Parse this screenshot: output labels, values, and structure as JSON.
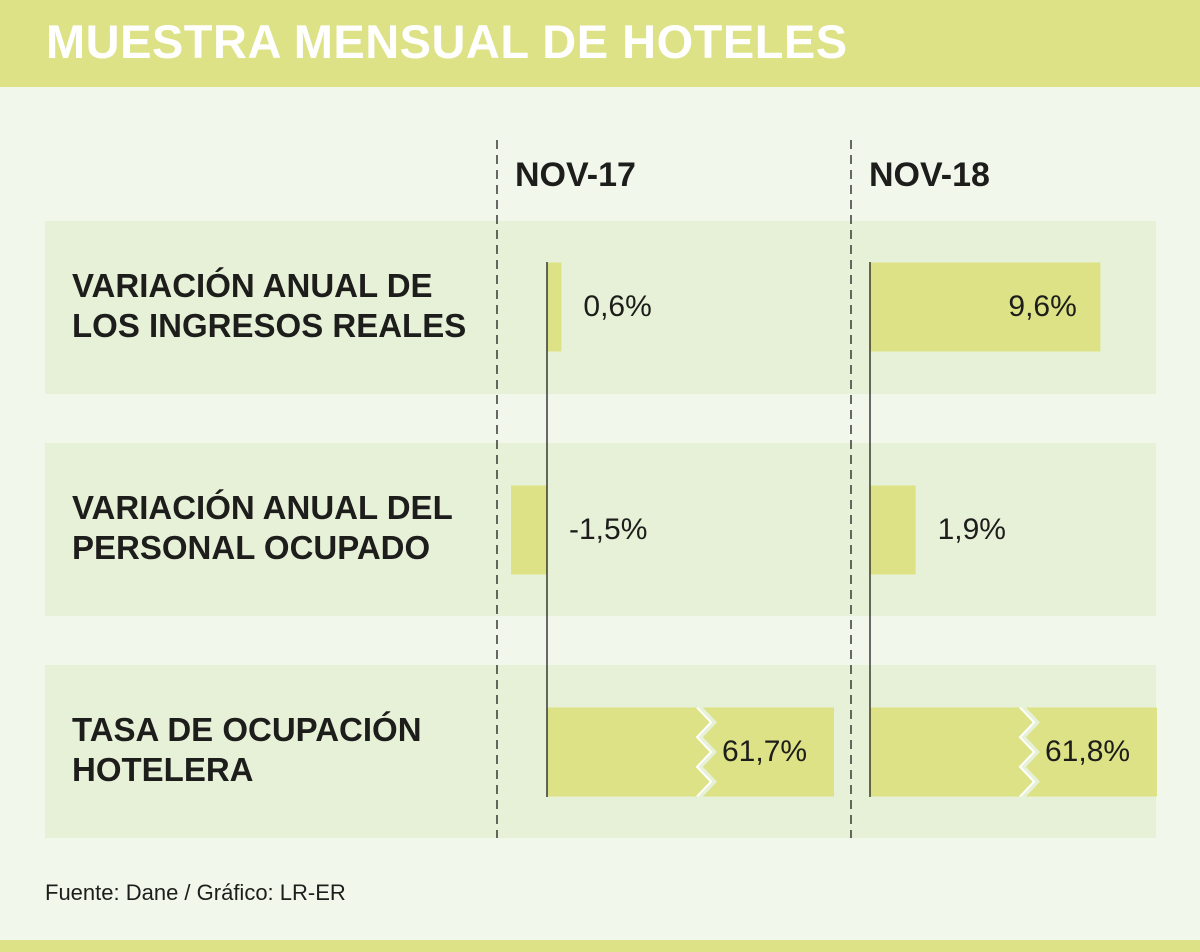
{
  "title": "MUESTRA MENSUAL DE HOTELES",
  "source": "Fuente: Dane / Gráfico: LR-ER",
  "colors": {
    "accent": "#dce285",
    "band": "#e7f1d8",
    "background": "#f2f7ec",
    "text": "#1d1d1b"
  },
  "chart_data": {
    "type": "bar",
    "title": "MUESTRA MENSUAL DE HOTELES",
    "categories": [
      "VARIACIÓN ANUAL DE LOS INGRESOS REALES",
      "VARIACIÓN ANUAL DEL PERSONAL OCUPADO",
      "TASA DE OCUPACIÓN HOTELERA"
    ],
    "category_lines": [
      [
        "VARIACIÓN ANUAL DE",
        "LOS INGRESOS REALES"
      ],
      [
        "VARIACIÓN ANUAL DEL",
        "PERSONAL OCUPADO"
      ],
      [
        "TASA DE OCUPACIÓN",
        "HOTELERA"
      ]
    ],
    "series": [
      {
        "name": "NOV-17",
        "values": [
          0.6,
          -1.5,
          61.7
        ],
        "labels": [
          "0,6%",
          "-1,5%",
          "61,7%"
        ]
      },
      {
        "name": "NOV-18",
        "values": [
          9.6,
          1.9,
          61.8
        ],
        "labels": [
          "9,6%",
          "1,9%",
          "61,8%"
        ]
      }
    ],
    "axis_break_on_category": 2,
    "xlabel": "",
    "ylabel": ""
  }
}
